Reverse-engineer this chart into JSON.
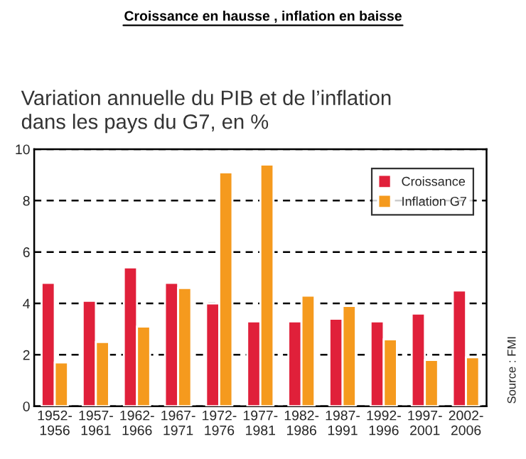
{
  "chart_data": {
    "type": "bar",
    "title": "Croissance en hausse , inflation en baisse",
    "subtitle": "Variation annuelle du PIB et de l’inflation\ndans les pays du G7, en %",
    "categories": [
      "1952-\n1956",
      "1957-\n1961",
      "1962-\n1966",
      "1967-\n1971",
      "1972-\n1976",
      "1977-\n1981",
      "1982-\n1986",
      "1987-\n1991",
      "1992-\n1996",
      "1997-\n2001",
      "2002-\n2006"
    ],
    "series": [
      {
        "name": "Croissance",
        "color": "#e0203a",
        "values": [
          4.8,
          4.1,
          5.4,
          4.8,
          4.0,
          3.3,
          3.3,
          3.4,
          3.3,
          3.6,
          4.5
        ]
      },
      {
        "name": "Inflation G7",
        "color": "#f59a1e",
        "values": [
          1.7,
          2.5,
          3.1,
          4.6,
          9.1,
          9.4,
          4.3,
          3.9,
          2.6,
          1.8,
          1.9
        ]
      }
    ],
    "ylim": [
      0,
      10
    ],
    "yticks": [
      0,
      2,
      4,
      6,
      8,
      10
    ],
    "grid": "y",
    "line_style": "dashed",
    "legend": "top right",
    "annotations": [
      "Source : FMI"
    ]
  }
}
